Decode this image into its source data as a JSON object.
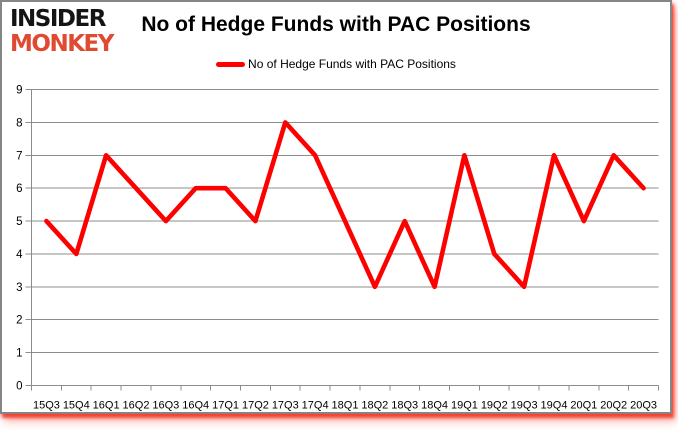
{
  "logo": {
    "line1": "INSIDER",
    "line2": "MONKEY",
    "line1_color": "#141414",
    "line2_color": "#df4a31"
  },
  "title": "No of Hedge Funds with PAC Positions",
  "legend": {
    "label": "No of Hedge Funds with PAC Positions",
    "swatch_color": "#ff0000"
  },
  "frame": {
    "border_color": "#858585",
    "shadow_color": "#f23021",
    "background": "#ffffff"
  },
  "chart_data": {
    "type": "line",
    "title": "No of Hedge Funds with PAC Positions",
    "categories": [
      "15Q3",
      "15Q4",
      "16Q1",
      "16Q2",
      "16Q3",
      "16Q4",
      "17Q1",
      "17Q2",
      "17Q3",
      "17Q4",
      "18Q1",
      "18Q2",
      "18Q3",
      "18Q4",
      "19Q1",
      "19Q2",
      "19Q3",
      "19Q4",
      "20Q1",
      "20Q2",
      "20Q3"
    ],
    "series": [
      {
        "name": "No of Hedge Funds with PAC Positions",
        "color": "#ff0000",
        "values": [
          5,
          4,
          7,
          6,
          5,
          6,
          6,
          5,
          8,
          7,
          5,
          3,
          5,
          3,
          7,
          4,
          3,
          7,
          5,
          7,
          6
        ]
      }
    ],
    "ylim": [
      0,
      9
    ],
    "yticks": [
      0,
      1,
      2,
      3,
      4,
      5,
      6,
      7,
      8,
      9
    ],
    "xlabel": "",
    "ylabel": "",
    "grid": "horizontal",
    "gridline_color": "#8c8c8c",
    "axis_color": "#8c8c8c",
    "tick_label_color": "#000000",
    "legend_position": "top-center"
  }
}
